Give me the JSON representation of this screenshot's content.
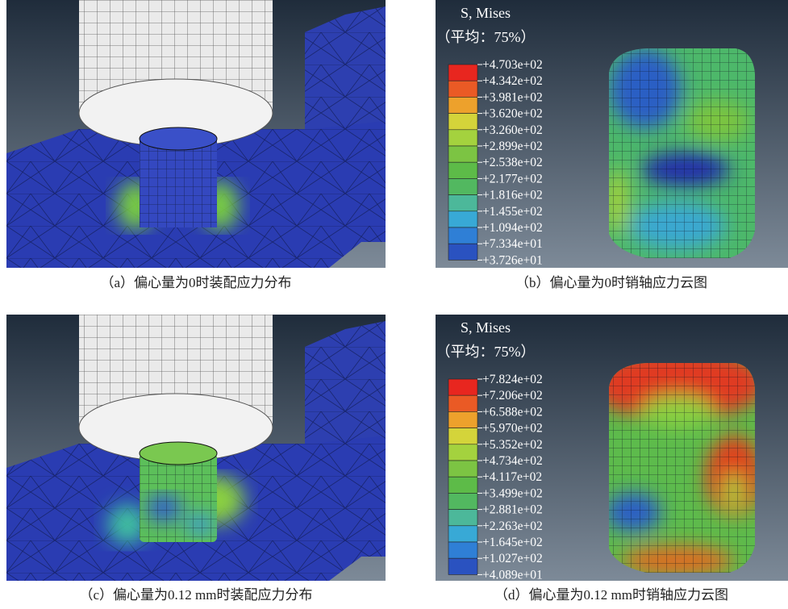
{
  "panels": [
    {
      "caption": "（a）偏心量为0时装配应力分布"
    },
    {
      "legend": {
        "title": "S, Mises",
        "subtitle": "（平均：75%）",
        "labels": [
          "+4.703e+02",
          "+4.342e+02",
          "+3.981e+02",
          "+3.620e+02",
          "+3.260e+02",
          "+2.899e+02",
          "+2.538e+02",
          "+2.177e+02",
          "+1.816e+02",
          "+1.455e+02",
          "+1.094e+02",
          "+7.334e+01",
          "+3.726e+01"
        ]
      },
      "caption": "（b）偏心量为0时销轴应力云图"
    },
    {
      "caption": "（c）偏心量为0.12 mm时装配应力分布"
    },
    {
      "legend": {
        "title": "S, Mises",
        "subtitle": "（平均：75%）",
        "labels": [
          "+7.824e+02",
          "+7.206e+02",
          "+6.588e+02",
          "+5.970e+02",
          "+5.352e+02",
          "+4.734e+02",
          "+4.117e+02",
          "+3.499e+02",
          "+2.881e+02",
          "+2.263e+02",
          "+1.645e+02",
          "+1.027e+02",
          "+4.089e+01"
        ]
      },
      "caption": "（d）偏心量为0.12 mm时销轴应力云图"
    }
  ]
}
